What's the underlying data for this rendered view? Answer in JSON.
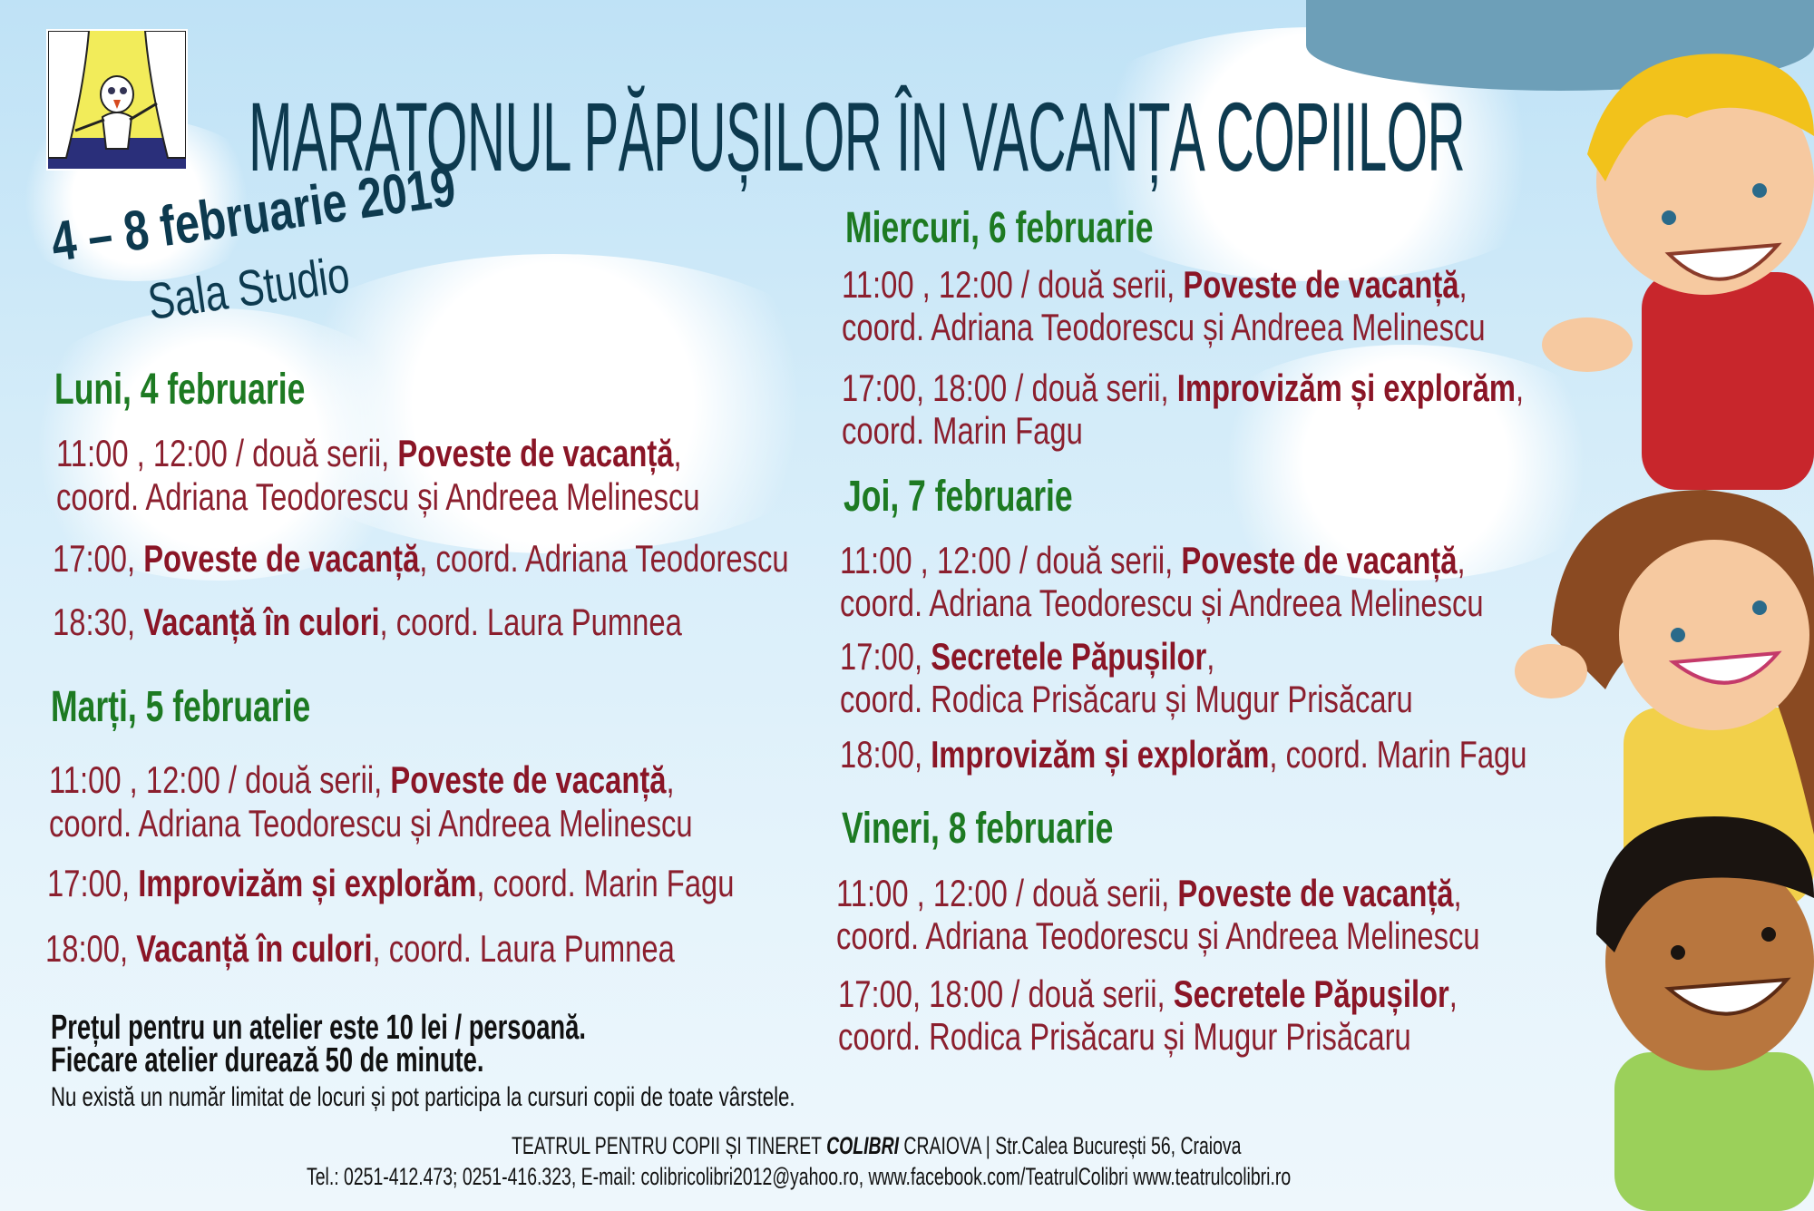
{
  "title": "MARATONUL PĂPUȘILOR ÎN VACANȚA COPIILOR",
  "dates": "4 – 8 februarie 2019",
  "venue": "Sala Studio",
  "colors": {
    "title": "#0d3a4f",
    "day_heading": "#1d7a22",
    "session": "#8b1f2e"
  },
  "days": [
    {
      "heading": "Luni, 4 februarie",
      "lines": [
        {
          "pre": "11:00 , 12:00 / două serii, ",
          "bold": "Poveste de vacanță",
          "post": ","
        },
        {
          "pre": "coord. Adriana Teodorescu și Andreea Melinescu",
          "bold": "",
          "post": ""
        },
        {
          "pre": "17:00, ",
          "bold": "Poveste de vacanță",
          "post": ", coord. Adriana Teodorescu"
        },
        {
          "pre": "18:30, ",
          "bold": "Vacanță în culori",
          "post": ", coord. Laura Pumnea"
        }
      ]
    },
    {
      "heading": "Marți, 5 februarie",
      "lines": [
        {
          "pre": "11:00 , 12:00 / două serii, ",
          "bold": "Poveste de vacanță",
          "post": ","
        },
        {
          "pre": "coord. Adriana Teodorescu și Andreea Melinescu",
          "bold": "",
          "post": ""
        },
        {
          "pre": "17:00, ",
          "bold": "Improvizăm și explorăm",
          "post": ", coord. Marin Fagu"
        },
        {
          "pre": "18:00, ",
          "bold": "Vacanță în culori",
          "post": ", coord. Laura Pumnea"
        }
      ]
    },
    {
      "heading": "Miercuri, 6 februarie",
      "lines": [
        {
          "pre": "11:00 , 12:00 / două serii, ",
          "bold": "Poveste de vacanță",
          "post": ","
        },
        {
          "pre": "coord. Adriana Teodorescu și Andreea Melinescu",
          "bold": "",
          "post": ""
        },
        {
          "pre": "17:00, 18:00 / două serii, ",
          "bold": "Improvizăm și explorăm",
          "post": ","
        },
        {
          "pre": "coord. Marin Fagu",
          "bold": "",
          "post": ""
        }
      ]
    },
    {
      "heading": "Joi, 7 februarie",
      "lines": [
        {
          "pre": "11:00 , 12:00 / două serii, ",
          "bold": "Poveste de vacanță",
          "post": ","
        },
        {
          "pre": "coord. Adriana Teodorescu și Andreea Melinescu",
          "bold": "",
          "post": ""
        },
        {
          "pre": "17:00, ",
          "bold": "Secretele Păpușilor",
          "post": ","
        },
        {
          "pre": "coord. Rodica Prisăcaru și Mugur Prisăcaru",
          "bold": "",
          "post": ""
        },
        {
          "pre": "18:00, ",
          "bold": "Improvizăm și explorăm",
          "post": ", coord. Marin Fagu"
        }
      ]
    },
    {
      "heading": "Vineri, 8 februarie",
      "lines": [
        {
          "pre": "11:00 , 12:00 / două serii, ",
          "bold": "Poveste de vacanță",
          "post": ","
        },
        {
          "pre": "coord. Adriana Teodorescu și Andreea Melinescu",
          "bold": "",
          "post": ""
        },
        {
          "pre": "17:00, 18:00 / două serii, ",
          "bold": "Secretele Păpușilor",
          "post": ","
        },
        {
          "pre": "coord. Rodica Prisăcaru și Mugur Prisăcaru",
          "bold": "",
          "post": ""
        }
      ]
    }
  ],
  "notes": {
    "price": "Prețul pentru un atelier este 10 lei / persoană.",
    "duration": "Fiecare atelier durează 50 de minute.",
    "limit": "Nu există un număr limitat de locuri și pot participa la cursuri copii de toate vârstele."
  },
  "footer": {
    "org_pre": "TEATRUL PENTRU COPII  ȘI TINERET ",
    "org_bold": "COLIBRI",
    "org_post": " CRAIOVA | Str.Calea București 56, Craiova",
    "contact": "Tel.: 0251-412.473; 0251-416.323, E-mail: colibricolibri2012@yahoo.ro,  www.facebook.com/TeatrulColibri   www.teatrulcolibri.ro"
  },
  "logo_icon": "puppet-theatre-logo"
}
